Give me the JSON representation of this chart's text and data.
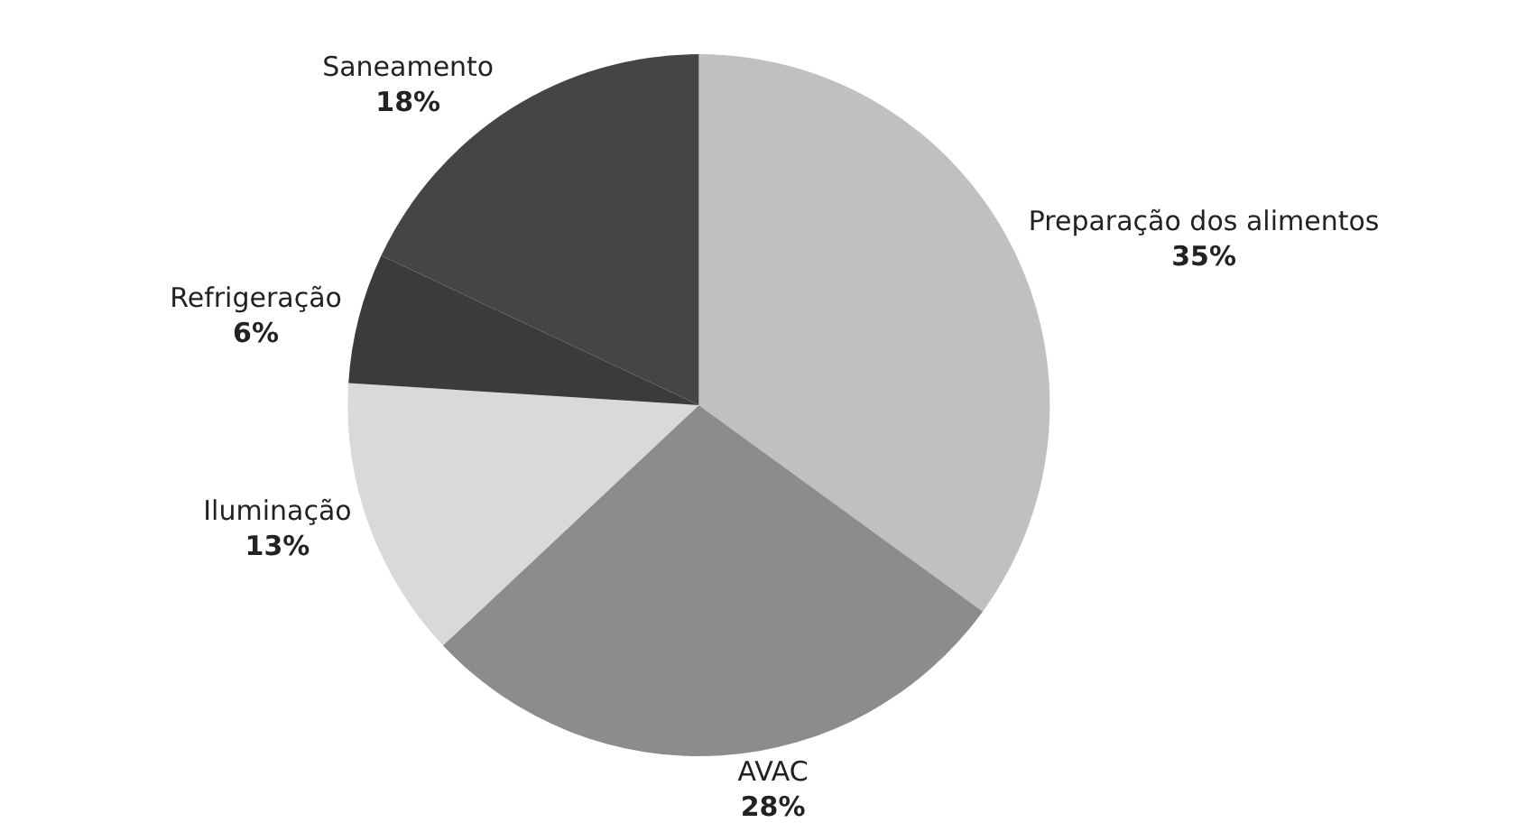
{
  "chart_data": {
    "type": "pie",
    "categories": [
      "Preparação dos alimentos",
      "AVAC",
      "Iluminação",
      "Refrigeração",
      "Saneamento"
    ],
    "values": [
      35,
      28,
      13,
      6,
      18
    ],
    "value_labels": [
      "35%",
      "28%",
      "13%",
      "6%",
      "18%"
    ],
    "colors": [
      "#c0c0c0",
      "#8c8c8c",
      "#d9d9d9",
      "#3b3b3b",
      "#454545"
    ],
    "legend": false
  }
}
